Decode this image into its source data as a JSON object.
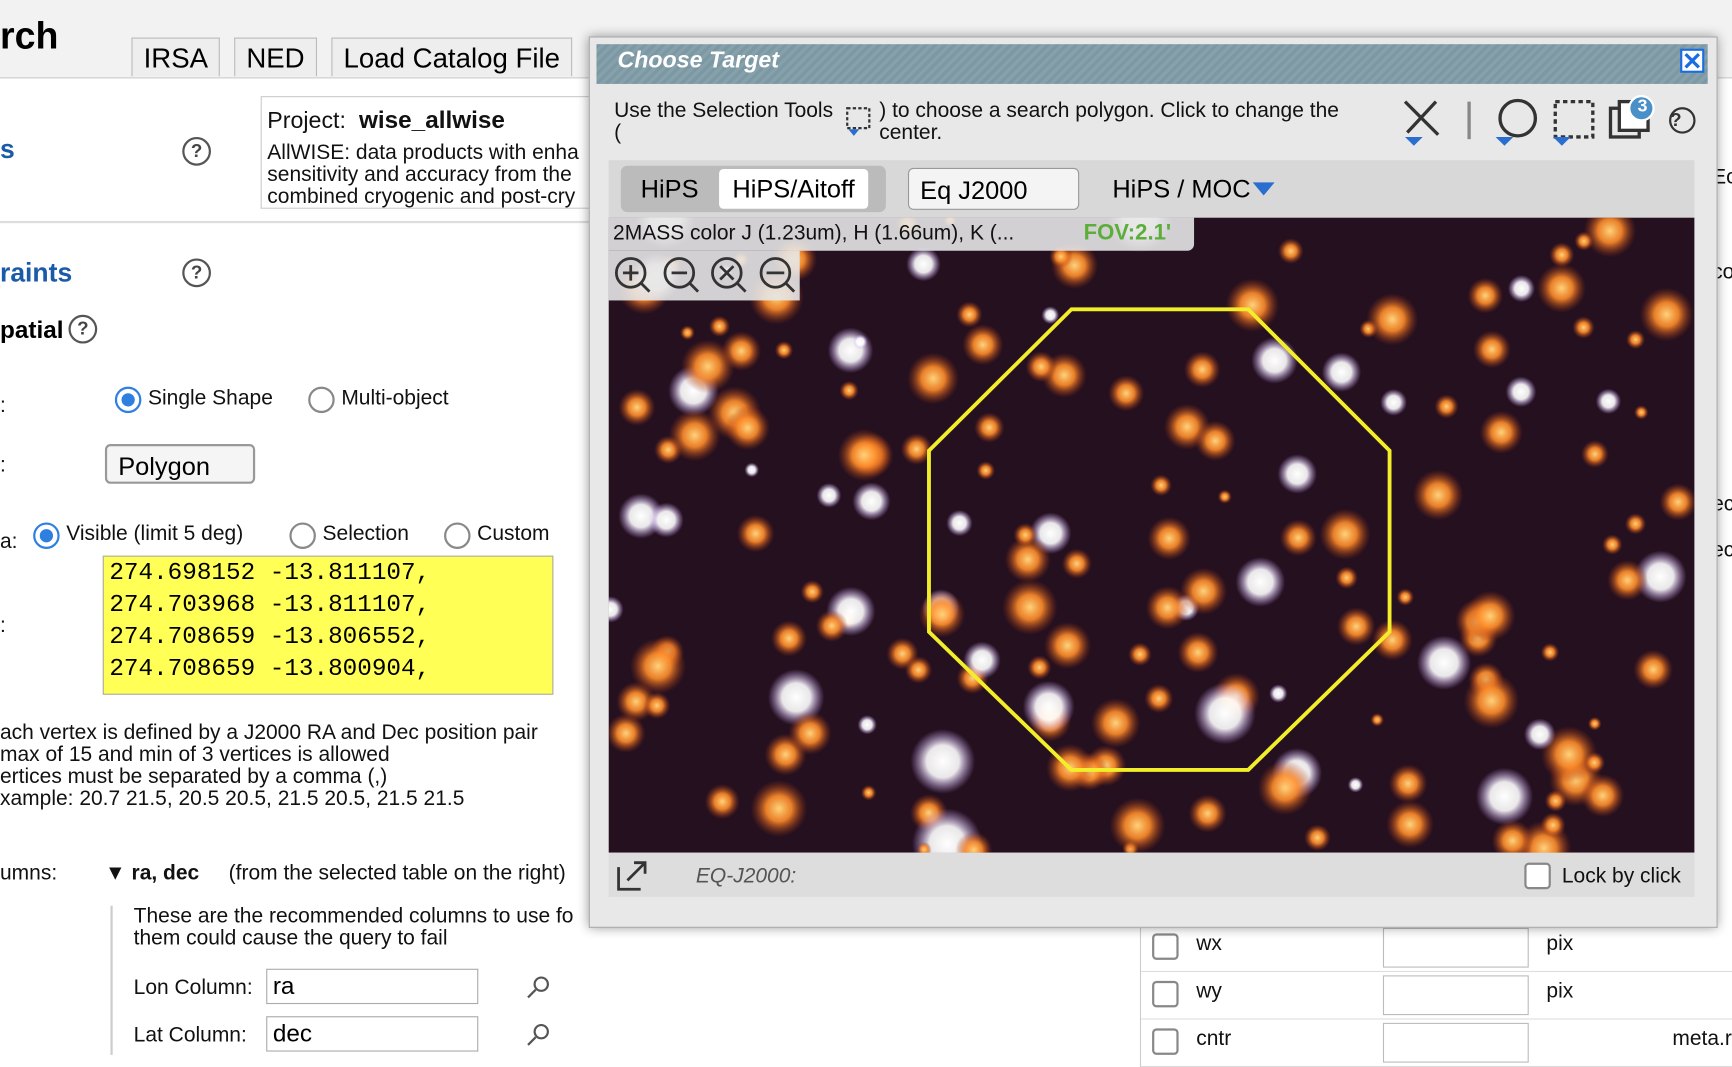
{
  "background": {
    "title": "rch",
    "tabs": [
      "IRSA",
      "NED",
      "Load Catalog File"
    ],
    "project_label": "Project:",
    "project_name": "wise_allwise",
    "project_desc": [
      "AllWISE: data products with enha",
      "sensitivity and accuracy from the",
      "combined cryogenic and post-cry"
    ],
    "help_icon": "?",
    "side_link": "s",
    "constraints": "raints",
    "spatial": "patial",
    "labels": [
      ":",
      ":",
      "a:",
      ":"
    ],
    "search_modes": [
      "Single Shape",
      "Multi-object"
    ],
    "shape": "Polygon",
    "area_modes": [
      "Visible (limit 5 deg)",
      "Selection",
      "Custom"
    ],
    "polygon_lines": [
      "274.698152 -13.811107,",
      "274.703968 -13.811107,",
      "274.708659 -13.806552,",
      "274.708659 -13.800904,"
    ],
    "help_lines": [
      "ach vertex is defined by a J2000 RA and Dec position pair",
      "max of 15 and min of 3 vertices is allowed",
      "ertices must be separated by a comma (,)",
      "xample: 20.7 21.5, 20.5 20.5, 21.5 20.5, 21.5 21.5"
    ],
    "columns_label": "umns:",
    "columns_toggle": "▼ ra, dec",
    "columns_note": "(from the selected table on the right)",
    "columns_help": [
      "These are the recommended columns to use fo",
      "them could cause the query to fail"
    ],
    "lon_label": "Lon Column:",
    "lon_value": "ra",
    "lat_label": "Lat Column:",
    "lat_value": "dec",
    "table_rows": [
      [
        "wx",
        "pix",
        ""
      ],
      [
        "wy",
        "pix",
        ""
      ],
      [
        "cntr",
        "",
        "meta.r"
      ]
    ],
    "edge_texts": [
      "Ec",
      "co",
      "ec",
      "ec"
    ]
  },
  "dialog": {
    "title": "Choose Target",
    "instr_a": "Use the Selection Tools",
    "instr_paren_open": "(",
    "instr_b": ") to choose a search polygon. Click to change the",
    "instr_c": "center.",
    "badge": "3",
    "view_tabs": [
      "HiPS",
      "HiPS/Aitoff"
    ],
    "coord_select": "Eq J2000",
    "hips_moc": "HiPS / MOC",
    "image_title": "2MASS color J (1.23um), H (1.66um), K (...",
    "fov": "FOV:2.1'",
    "coord_readout": "EQ-J2000:",
    "lock": "Lock by click"
  }
}
